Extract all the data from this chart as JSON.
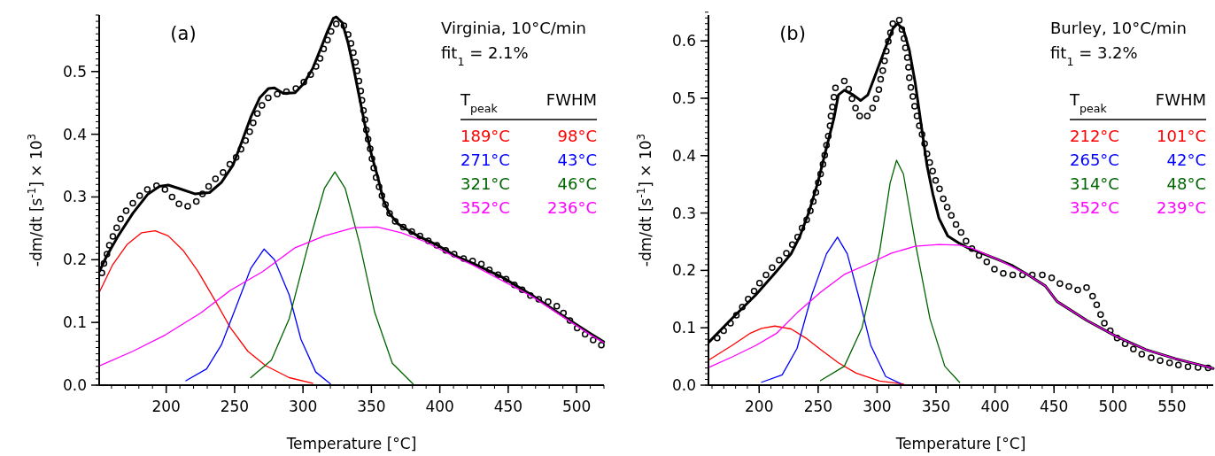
{
  "chart_data": [
    {
      "type": "line",
      "title": "Virginia, 10°C/min",
      "xlabel": "Temperature  [°C]",
      "ylabel": "-dm/dt  [s$^{-1}$]  × 10$^{3}$",
      "xlim": [
        151,
        520
      ],
      "ylim": [
        0,
        0.59
      ],
      "xticks": [
        200,
        250,
        300,
        350,
        400,
        450,
        500
      ],
      "yticks": [
        {
          "value": 0,
          "label": "0.0"
        },
        0.1,
        0.2,
        0.3,
        0.4,
        0.5
      ],
      "annotations": [
        "(a)",
        "fit$_{1}$  = 2.1%",
        "T$_{peak}$",
        "FWHM",
        "189°C",
        "98°C",
        "271°C",
        "43°C",
        "321°C",
        "46°C",
        "352°C",
        "236°C"
      ],
      "series": [
        {
          "type": "scatter",
          "marker": "circle",
          "color": "#000000",
          "x": [
            153.0,
            154.5,
            156.7,
            158.4,
            161.0,
            163.8,
            166.6,
            170.7,
            175.6,
            180.6,
            186.2,
            192.9,
            199.1,
            204.3,
            209.3,
            215.7,
            222.0,
            226.5,
            231.0,
            236.0,
            241.6,
            246.5,
            251.1,
            254.7,
            258.0,
            261.0,
            263.6,
            266.6,
            270.0,
            274.6,
            281.2,
            287.9,
            294.8,
            300.6,
            305.6,
            309.5,
            312.5,
            315.1,
            317.9,
            320.5,
            324.3,
            329.9,
            333.0,
            335.1,
            336.8,
            338.4,
            339.6,
            340.9,
            342.2,
            343.1,
            344.2,
            345.3,
            346.3,
            347.6,
            349.1,
            350.4,
            351.7,
            353.4,
            355.6,
            357.7,
            360.3,
            363.3,
            367.4,
            373.3,
            379.5,
            385.5,
            391.6,
            397.8,
            404.3,
            410.5,
            417.4,
            424.0,
            430.4,
            436.2,
            442.6,
            448.5,
            454.5,
            460.2,
            466.2,
            472.3,
            479.2,
            485.5,
            490.4,
            495.1,
            500.4,
            506.2,
            512.1,
            518.1
          ],
          "values": [
            0.179,
            0.194,
            0.209,
            0.223,
            0.237,
            0.251,
            0.265,
            0.278,
            0.29,
            0.302,
            0.312,
            0.318,
            0.312,
            0.3,
            0.289,
            0.285,
            0.293,
            0.305,
            0.317,
            0.329,
            0.339,
            0.352,
            0.363,
            0.376,
            0.39,
            0.404,
            0.418,
            0.433,
            0.446,
            0.458,
            0.464,
            0.468,
            0.473,
            0.483,
            0.495,
            0.508,
            0.521,
            0.536,
            0.55,
            0.564,
            0.576,
            0.573,
            0.559,
            0.545,
            0.53,
            0.515,
            0.501,
            0.485,
            0.469,
            0.454,
            0.438,
            0.423,
            0.407,
            0.392,
            0.377,
            0.361,
            0.346,
            0.331,
            0.316,
            0.302,
            0.288,
            0.274,
            0.261,
            0.252,
            0.245,
            0.238,
            0.23,
            0.223,
            0.215,
            0.209,
            0.202,
            0.198,
            0.193,
            0.184,
            0.176,
            0.169,
            0.16,
            0.152,
            0.143,
            0.137,
            0.133,
            0.126,
            0.115,
            0.103,
            0.091,
            0.081,
            0.072,
            0.064
          ]
        },
        {
          "type": "line",
          "color": "#000000",
          "x": [
            151.3,
            156.3,
            164.9,
            175.6,
            186.4,
            195.0,
            201.5,
            210.1,
            220.9,
            231.7,
            240.3,
            248.9,
            255.4,
            261.8,
            268.3,
            274.8,
            279.1,
            285.6,
            294.2,
            300.6,
            307.1,
            313.6,
            317.9,
            322.2,
            324.3,
            328.7,
            333.0,
            337.3,
            341.6,
            345.9,
            350.2,
            354.5,
            358.8,
            363.1,
            369.6,
            376.1,
            384.7,
            397.6,
            410.5,
            424.5,
            445.7,
            467.0,
            488.3,
            509.6,
            519.8
          ],
          "values": [
            0.182,
            0.205,
            0.238,
            0.274,
            0.304,
            0.317,
            0.319,
            0.313,
            0.305,
            0.307,
            0.323,
            0.351,
            0.389,
            0.427,
            0.458,
            0.473,
            0.474,
            0.465,
            0.466,
            0.481,
            0.505,
            0.54,
            0.564,
            0.585,
            0.587,
            0.578,
            0.545,
            0.502,
            0.455,
            0.408,
            0.366,
            0.333,
            0.295,
            0.274,
            0.257,
            0.248,
            0.237,
            0.224,
            0.207,
            0.194,
            0.172,
            0.144,
            0.113,
            0.083,
            0.069
          ]
        },
        {
          "type": "line",
          "color": "#ff0000",
          "x": [
            151.3,
            160.6,
            171.3,
            182.1,
            191.8,
            201.5,
            212.3,
            223.1,
            236.0,
            246.8,
            259.7,
            272.7,
            289.9,
            307.1
          ],
          "values": [
            0.149,
            0.191,
            0.224,
            0.243,
            0.246,
            0.238,
            0.215,
            0.182,
            0.134,
            0.092,
            0.054,
            0.031,
            0.012,
            0.003
          ]
        },
        {
          "type": "line",
          "color": "#0000ff",
          "x": [
            214.4,
            229.5,
            240.3,
            251.1,
            261.8,
            271.5,
            279.1,
            289.9,
            298.5,
            309.3,
            320.0
          ],
          "values": [
            0.007,
            0.026,
            0.064,
            0.125,
            0.186,
            0.217,
            0.2,
            0.144,
            0.073,
            0.021,
            0.002
          ]
        },
        {
          "type": "line",
          "color": "#006400",
          "x": [
            261.8,
            276.9,
            289.9,
            302.8,
            315.7,
            323.3,
            330.8,
            341.6,
            352.4,
            365.3,
            380.4
          ],
          "values": [
            0.012,
            0.04,
            0.106,
            0.215,
            0.314,
            0.34,
            0.314,
            0.224,
            0.116,
            0.035,
            0.002
          ]
        },
        {
          "type": "line",
          "color": "#ff00ff",
          "x": [
            151.3,
            175.6,
            199.3,
            225.2,
            246.8,
            270.5,
            294.2,
            315.7,
            337.3,
            354.5,
            371.8,
            389.0,
            410.5,
            424.5,
            467.0,
            509.6,
            519.8
          ],
          "values": [
            0.031,
            0.054,
            0.08,
            0.115,
            0.151,
            0.181,
            0.219,
            0.238,
            0.251,
            0.252,
            0.243,
            0.229,
            0.205,
            0.191,
            0.142,
            0.081,
            0.068
          ]
        }
      ]
    },
    {
      "type": "line",
      "title": "Burley, 10°C/min",
      "xlabel": "Temperature  [°C]",
      "ylabel": "-dm/dt  [s$^{-1}$]  × 10$^{3}$",
      "xlim": [
        157,
        585
      ],
      "ylim": [
        0,
        0.645
      ],
      "xticks": [
        200,
        250,
        300,
        350,
        400,
        450,
        500,
        550
      ],
      "yticks": [
        {
          "value": 0,
          "label": "0.0"
        },
        0.1,
        0.2,
        0.3,
        0.4,
        0.5,
        0.6
      ],
      "annotations": [
        "(b)",
        "fit$_{1}$  = 3.2%",
        "T$_{peak}$",
        "FWHM",
        "212°C",
        "101°C",
        "265°C",
        "42°C",
        "314°C",
        "48°C",
        "352°C",
        "239°C"
      ],
      "series": [
        {
          "type": "scatter",
          "marker": "circle",
          "color": "#000000",
          "x": [
            164.4,
            169.9,
            175.7,
            180.7,
            185.7,
            190.7,
            195.7,
            200.3,
            205.8,
            211.0,
            217.0,
            223.1,
            228.1,
            232.6,
            236.3,
            240.3,
            243.4,
            245.9,
            248.1,
            250.1,
            252.1,
            254.1,
            255.6,
            257.1,
            258.6,
            260.1,
            260.9,
            262.1,
            263.4,
            264.7,
            272.2,
            275.9,
            278.7,
            281.7,
            285.2,
            291.7,
            296.2,
            299.2,
            301.5,
            303.0,
            304.8,
            306.3,
            307.8,
            309.5,
            311.3,
            313.3,
            318.8,
            321.0,
            322.8,
            324.0,
            325.6,
            326.6,
            327.3,
            328.6,
            330.3,
            331.8,
            333.8,
            335.8,
            338.1,
            340.3,
            342.3,
            344.6,
            347.1,
            349.6,
            352.9,
            356.1,
            359.4,
            362.9,
            366.9,
            371.2,
            375.4,
            380.4,
            386.4,
            393.0,
            399.5,
            407.0,
            415.0,
            423.3,
            431.6,
            440.1,
            448.0,
            455.0,
            462.6,
            470.1,
            477.6,
            482.7,
            486.2,
            489.5,
            492.7,
            497.7,
            503.5,
            510.3,
            517.3,
            524.4,
            532.4,
            540.0,
            548.0,
            555.5,
            563.6,
            572.1,
            580.7
          ],
          "values": [
            0.082,
            0.095,
            0.108,
            0.122,
            0.136,
            0.15,
            0.164,
            0.178,
            0.192,
            0.205,
            0.218,
            0.23,
            0.245,
            0.258,
            0.274,
            0.288,
            0.304,
            0.32,
            0.336,
            0.353,
            0.368,
            0.385,
            0.401,
            0.418,
            0.434,
            0.452,
            0.469,
            0.485,
            0.502,
            0.518,
            0.53,
            0.516,
            0.499,
            0.483,
            0.469,
            0.469,
            0.483,
            0.499,
            0.515,
            0.533,
            0.548,
            0.565,
            0.582,
            0.599,
            0.614,
            0.63,
            0.636,
            0.62,
            0.604,
            0.588,
            0.571,
            0.554,
            0.536,
            0.519,
            0.503,
            0.486,
            0.469,
            0.452,
            0.437,
            0.421,
            0.403,
            0.388,
            0.373,
            0.357,
            0.342,
            0.325,
            0.31,
            0.296,
            0.28,
            0.266,
            0.251,
            0.238,
            0.226,
            0.215,
            0.202,
            0.195,
            0.192,
            0.192,
            0.192,
            0.192,
            0.187,
            0.177,
            0.172,
            0.166,
            0.17,
            0.155,
            0.14,
            0.123,
            0.108,
            0.095,
            0.082,
            0.072,
            0.063,
            0.054,
            0.048,
            0.043,
            0.039,
            0.035,
            0.032,
            0.031,
            0.03
          ]
        },
        {
          "type": "line",
          "color": "#000000",
          "x": [
            157.4,
            176.9,
            197.0,
            214.5,
            227.1,
            234.6,
            242.1,
            249.6,
            257.1,
            263.4,
            267.2,
            272.2,
            279.7,
            286.0,
            292.2,
            299.7,
            307.3,
            313.5,
            317.3,
            322.3,
            327.3,
            332.3,
            337.3,
            342.3,
            347.4,
            352.4,
            359.9,
            369.9,
            377.4,
            390.0,
            402.5,
            415.0,
            427.5,
            442.6,
            452.5,
            477.6,
            502.8,
            527.9,
            553.0,
            578.2,
            585
          ],
          "values": [
            0.075,
            0.116,
            0.157,
            0.198,
            0.229,
            0.26,
            0.301,
            0.352,
            0.414,
            0.465,
            0.506,
            0.514,
            0.506,
            0.496,
            0.506,
            0.547,
            0.589,
            0.622,
            0.63,
            0.62,
            0.584,
            0.527,
            0.455,
            0.383,
            0.332,
            0.291,
            0.26,
            0.247,
            0.239,
            0.229,
            0.219,
            0.208,
            0.193,
            0.173,
            0.146,
            0.113,
            0.085,
            0.062,
            0.046,
            0.033,
            0.029
          ]
        },
        {
          "type": "line",
          "color": "#ff0000",
          "x": [
            157.4,
            176.9,
            192.0,
            202.0,
            213.3,
            227.1,
            239.6,
            252.1,
            267.2,
            282.2,
            302.2,
            322.3
          ],
          "values": [
            0.044,
            0.069,
            0.09,
            0.099,
            0.103,
            0.098,
            0.082,
            0.062,
            0.039,
            0.021,
            0.007,
            0.002
          ]
        },
        {
          "type": "line",
          "color": "#0000ff",
          "x": [
            202.0,
            219.5,
            232.1,
            244.6,
            257.1,
            266.4,
            274.7,
            284.7,
            294.7,
            307.3,
            319.8
          ],
          "values": [
            0.005,
            0.018,
            0.064,
            0.157,
            0.229,
            0.258,
            0.229,
            0.152,
            0.069,
            0.015,
            0.003
          ]
        },
        {
          "type": "line",
          "color": "#006400",
          "x": [
            252.1,
            272.2,
            287.2,
            302.2,
            311.0,
            316.5,
            322.3,
            332.3,
            344.8,
            357.4,
            369.9
          ],
          "values": [
            0.008,
            0.033,
            0.1,
            0.234,
            0.352,
            0.392,
            0.368,
            0.249,
            0.116,
            0.033,
            0.005
          ]
        },
        {
          "type": "line",
          "color": "#ff00ff",
          "x": [
            157.4,
            176.9,
            197.0,
            214.5,
            232.1,
            252.1,
            272.2,
            292.2,
            312.3,
            332.3,
            352.4,
            369.9,
            379.9,
            402.5,
            427.5,
            442.6,
            452.5,
            477.6,
            502.8,
            527.9,
            553.0,
            578.2,
            585
          ],
          "values": [
            0.031,
            0.049,
            0.069,
            0.09,
            0.126,
            0.162,
            0.193,
            0.211,
            0.23,
            0.242,
            0.245,
            0.244,
            0.239,
            0.219,
            0.193,
            0.173,
            0.146,
            0.113,
            0.085,
            0.062,
            0.046,
            0.033,
            0.029
          ]
        }
      ]
    }
  ]
}
